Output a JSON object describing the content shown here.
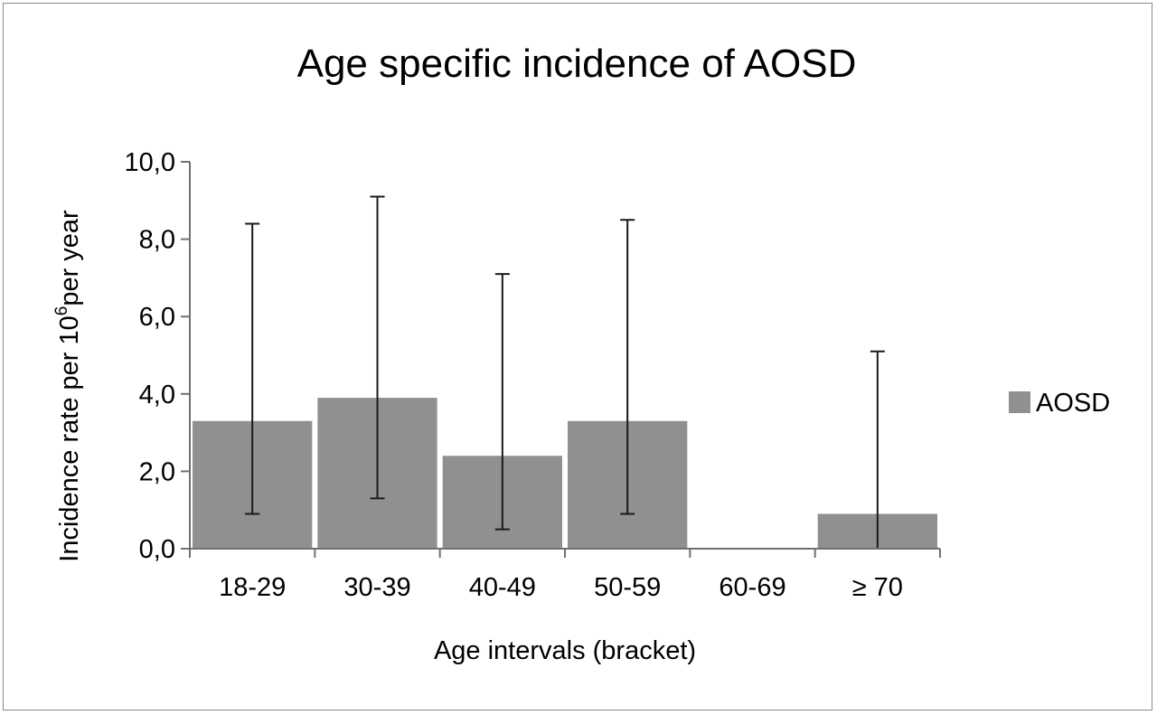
{
  "chart_data": {
    "type": "bar",
    "title": "Age specific incidence of AOSD",
    "xlabel": "Age intervals (bracket)",
    "ylabel": {
      "prefix": "Incidence rate per 10",
      "superscript": "6",
      "suffix": "per year"
    },
    "categories": [
      "18-29",
      "30-39",
      "40-49",
      "50-59",
      "60-69",
      "≥ 70"
    ],
    "series": [
      {
        "name": "AOSD",
        "values": [
          3.3,
          3.9,
          2.4,
          3.3,
          0.0,
          0.9
        ],
        "error_low": [
          0.9,
          1.3,
          0.5,
          0.9,
          null,
          0.0
        ],
        "error_high": [
          8.4,
          9.1,
          7.1,
          8.5,
          null,
          5.1
        ]
      }
    ],
    "ylim": [
      0,
      10
    ],
    "yticks": [
      0,
      2,
      4,
      6,
      8,
      10
    ],
    "ytick_labels": [
      "0,0",
      "2,0",
      "4,0",
      "6,0",
      "8,0",
      "10,0"
    ],
    "grid": false,
    "legend_position": "right",
    "colors": {
      "bar": "#909090",
      "error_bar": "#1a1a1a",
      "axis": "#707070"
    }
  }
}
